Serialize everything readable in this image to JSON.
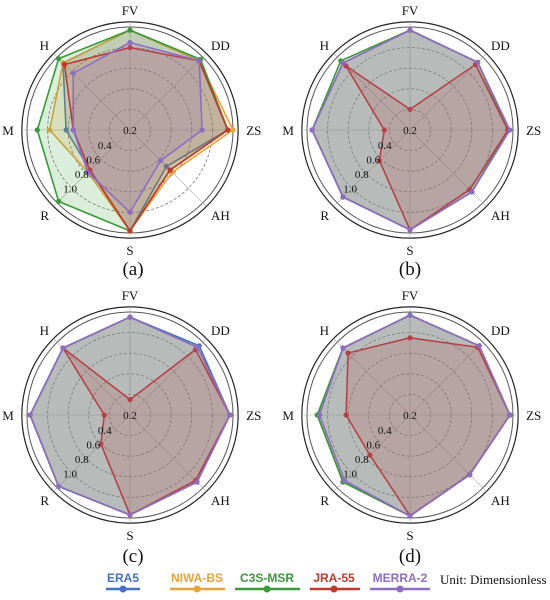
{
  "legend": [
    {
      "name": "ERA5",
      "color": "#4472c4"
    },
    {
      "name": "NIWA-BS",
      "color": "#e8a33a"
    },
    {
      "name": "C3S-MSR",
      "color": "#3a9a3a"
    },
    {
      "name": "JRA-55",
      "color": "#c0392b"
    },
    {
      "name": "MERRA-2",
      "color": "#8e6cc6"
    }
  ],
  "unit_text": "Unit: Dimensionless",
  "chart_data": [
    {
      "type": "radar",
      "panel_label": "(a)",
      "axes": [
        "FV",
        "DD",
        "ZS",
        "AH",
        "S",
        "R",
        "M",
        "H"
      ],
      "ticks": [
        0.2,
        0.4,
        0.6,
        0.8,
        1.0
      ],
      "tick_labels": [
        "0.2",
        "0.4",
        "0.6",
        "0.8",
        "1.0"
      ],
      "rlim": [
        0,
        1.0
      ],
      "series": [
        {
          "name": "ERA5",
          "values": [
            0.97,
            0.95,
            0.95,
            0.5,
            0.98,
            0.55,
            0.62,
            0.92
          ]
        },
        {
          "name": "NIWA-BS",
          "values": [
            0.97,
            0.95,
            1.0,
            0.58,
            0.98,
            0.58,
            0.78,
            0.92
          ]
        },
        {
          "name": "C3S-MSR",
          "values": [
            0.97,
            0.97,
            0.95,
            0.55,
            0.98,
            0.98,
            0.9,
            0.98
          ]
        },
        {
          "name": "JRA-55",
          "values": [
            0.8,
            0.95,
            0.95,
            0.55,
            0.98,
            0.55,
            0.55,
            0.9
          ]
        },
        {
          "name": "MERRA-2",
          "values": [
            0.85,
            0.95,
            0.7,
            0.42,
            0.8,
            0.58,
            0.55,
            0.78
          ]
        }
      ]
    },
    {
      "type": "radar",
      "panel_label": "(b)",
      "axes": [
        "FV",
        "DD",
        "ZS",
        "AH",
        "S",
        "R",
        "M",
        "H"
      ],
      "ticks": [
        0.2,
        0.4,
        0.6,
        0.8,
        1.0
      ],
      "tick_labels": [
        "0.2",
        "0.4",
        "0.6",
        "0.8",
        "1.0"
      ],
      "rlim": [
        0,
        1.0
      ],
      "series": [
        {
          "name": "ERA5",
          "values": [
            0.97,
            0.93,
            0.95,
            0.85,
            0.97,
            0.92,
            0.95,
            0.92
          ]
        },
        {
          "name": "NIWA-BS",
          "values": [
            0.97,
            0.93,
            0.95,
            0.85,
            0.97,
            0.92,
            0.95,
            0.92
          ]
        },
        {
          "name": "C3S-MSR",
          "values": [
            0.97,
            0.93,
            0.95,
            0.85,
            0.97,
            0.92,
            0.95,
            0.95
          ]
        },
        {
          "name": "JRA-55",
          "values": [
            0.2,
            0.9,
            0.95,
            0.82,
            0.97,
            0.42,
            0.25,
            0.88
          ]
        },
        {
          "name": "MERRA-2",
          "values": [
            0.97,
            0.93,
            0.97,
            0.85,
            0.97,
            0.92,
            0.95,
            0.92
          ]
        }
      ]
    },
    {
      "type": "radar",
      "panel_label": "(c)",
      "axes": [
        "FV",
        "DD",
        "ZS",
        "AH",
        "S",
        "R",
        "M",
        "H"
      ],
      "ticks": [
        0.2,
        0.4,
        0.6,
        0.8,
        1.0
      ],
      "tick_labels": [
        "0.2",
        "0.4",
        "0.6",
        "0.8",
        "1.0"
      ],
      "rlim": [
        0,
        1.0
      ],
      "series": [
        {
          "name": "ERA5",
          "values": [
            0.95,
            0.95,
            0.97,
            0.92,
            0.97,
            0.98,
            0.97,
            0.92
          ]
        },
        {
          "name": "NIWA-BS",
          "values": [
            0.95,
            0.93,
            0.97,
            0.92,
            0.97,
            0.98,
            0.97,
            0.92
          ]
        },
        {
          "name": "C3S-MSR",
          "values": [
            0.95,
            0.93,
            0.97,
            0.92,
            0.97,
            0.98,
            0.97,
            0.92
          ]
        },
        {
          "name": "JRA-55",
          "values": [
            0.15,
            0.9,
            0.97,
            0.9,
            0.97,
            0.4,
            0.25,
            0.92
          ]
        },
        {
          "name": "MERRA-2",
          "values": [
            0.95,
            0.93,
            0.97,
            0.92,
            0.97,
            0.98,
            0.97,
            0.92
          ]
        }
      ]
    },
    {
      "type": "radar",
      "panel_label": "(d)",
      "axes": [
        "FV",
        "DD",
        "ZS",
        "AH",
        "S",
        "R",
        "M",
        "H"
      ],
      "ticks": [
        0.2,
        0.4,
        0.6,
        0.8,
        1.0
      ],
      "tick_labels": [
        "0.2",
        "0.4",
        "0.6",
        "0.8",
        "1.0"
      ],
      "rlim": [
        0,
        1.0
      ],
      "series": [
        {
          "name": "ERA5",
          "values": [
            0.97,
            0.95,
            0.97,
            0.82,
            0.98,
            0.92,
            0.9,
            0.92
          ]
        },
        {
          "name": "NIWA-BS",
          "values": [
            0.97,
            0.95,
            0.97,
            0.82,
            0.98,
            0.92,
            0.9,
            0.92
          ]
        },
        {
          "name": "C3S-MSR",
          "values": [
            0.97,
            0.95,
            0.97,
            0.82,
            0.98,
            0.92,
            0.9,
            0.92
          ]
        },
        {
          "name": "JRA-55",
          "values": [
            0.75,
            0.93,
            0.97,
            0.82,
            0.98,
            0.55,
            0.62,
            0.85
          ]
        },
        {
          "name": "MERRA-2",
          "values": [
            0.97,
            0.95,
            0.97,
            0.82,
            0.98,
            0.9,
            0.88,
            0.92
          ]
        }
      ]
    }
  ]
}
